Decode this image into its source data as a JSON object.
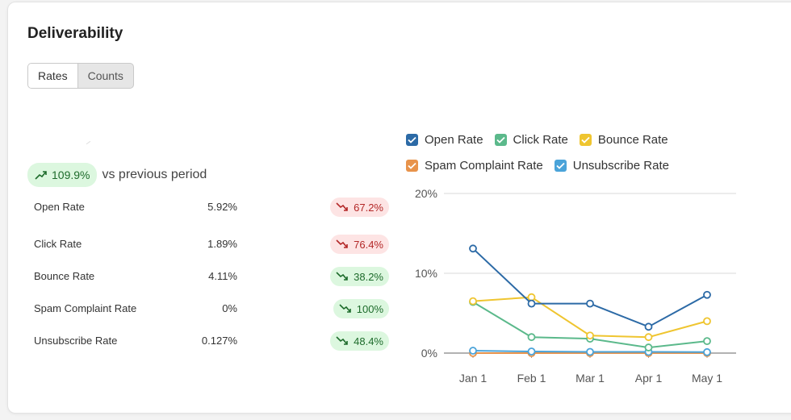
{
  "header": {
    "title": "Deliverability"
  },
  "tabs": [
    {
      "label": "Rates",
      "active": true
    },
    {
      "label": "Counts",
      "active": false
    }
  ],
  "overall": {
    "change": "109.9%",
    "direction": "up",
    "suffix": "vs previous period"
  },
  "metrics": [
    {
      "label": "Open Rate",
      "value": "5.92%",
      "change": "67.2%",
      "trend": "down",
      "sentiment": "bad"
    },
    {
      "label": "Click Rate",
      "value": "1.89%",
      "change": "76.4%",
      "trend": "down",
      "sentiment": "bad"
    },
    {
      "label": "Bounce Rate",
      "value": "4.11%",
      "change": "38.2%",
      "trend": "down",
      "sentiment": "good"
    },
    {
      "label": "Spam Complaint Rate",
      "value": "0%",
      "change": "100%",
      "trend": "down",
      "sentiment": "good"
    },
    {
      "label": "Unsubscribe Rate",
      "value": "0.127%",
      "change": "48.4%",
      "trend": "down",
      "sentiment": "good"
    }
  ],
  "colors": {
    "good_text": "#1d6b2b",
    "bad_text": "#b32727",
    "grid": "#d9d9d9",
    "axis": "#999999"
  },
  "chart_data": {
    "type": "line",
    "categories": [
      "Jan 1",
      "Feb 1",
      "Mar 1",
      "Apr 1",
      "May 1"
    ],
    "yticks": [
      "0%",
      "10%",
      "20%"
    ],
    "ylim": [
      0,
      20
    ],
    "series": [
      {
        "name": "Open Rate",
        "color": "#2c6aa6",
        "values": [
          13.1,
          6.2,
          6.2,
          3.3,
          7.3
        ]
      },
      {
        "name": "Click Rate",
        "color": "#5bb98b",
        "values": [
          6.4,
          2.0,
          1.8,
          0.7,
          1.5
        ]
      },
      {
        "name": "Bounce Rate",
        "color": "#efc530",
        "values": [
          6.5,
          7.0,
          2.2,
          2.0,
          4.0
        ]
      },
      {
        "name": "Spam Complaint Rate",
        "color": "#e8934b",
        "values": [
          0,
          0,
          0,
          0,
          0
        ]
      },
      {
        "name": "Unsubscribe Rate",
        "color": "#4aa3d9",
        "values": [
          0.3,
          0.2,
          0.15,
          0.15,
          0.12
        ]
      }
    ],
    "legend_rows": [
      [
        "Open Rate",
        "Click Rate",
        "Bounce Rate"
      ],
      [
        "Spam Complaint Rate",
        "Unsubscribe Rate"
      ]
    ]
  }
}
